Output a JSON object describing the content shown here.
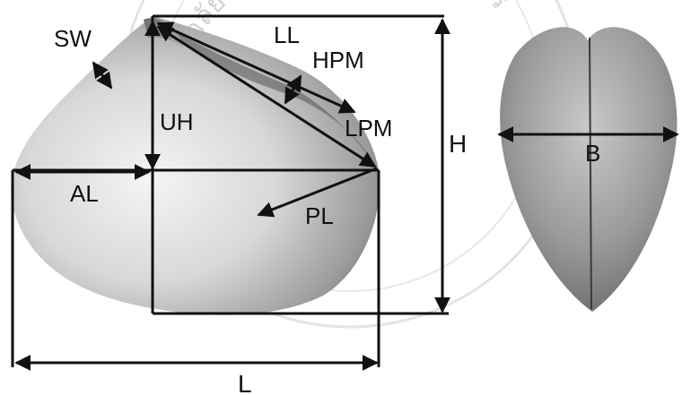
{
  "figure": {
    "labels": {
      "SW": "SW",
      "LL": "LL",
      "HPM": "HPM",
      "UH": "UH",
      "LPM": "LPM",
      "H": "H",
      "B": "B",
      "AL": "AL",
      "PL": "PL",
      "L": "L"
    },
    "watermark_text": "มหาวิทยาลัยพระจอมเกล้าเจ้าคุณทหาร",
    "colors": {
      "line": "#111111",
      "shell_light": "#e6e6e6",
      "shell_dark": "#555555",
      "side_shell": "#8c8c8c",
      "watermark": "#9a9a9a"
    }
  }
}
